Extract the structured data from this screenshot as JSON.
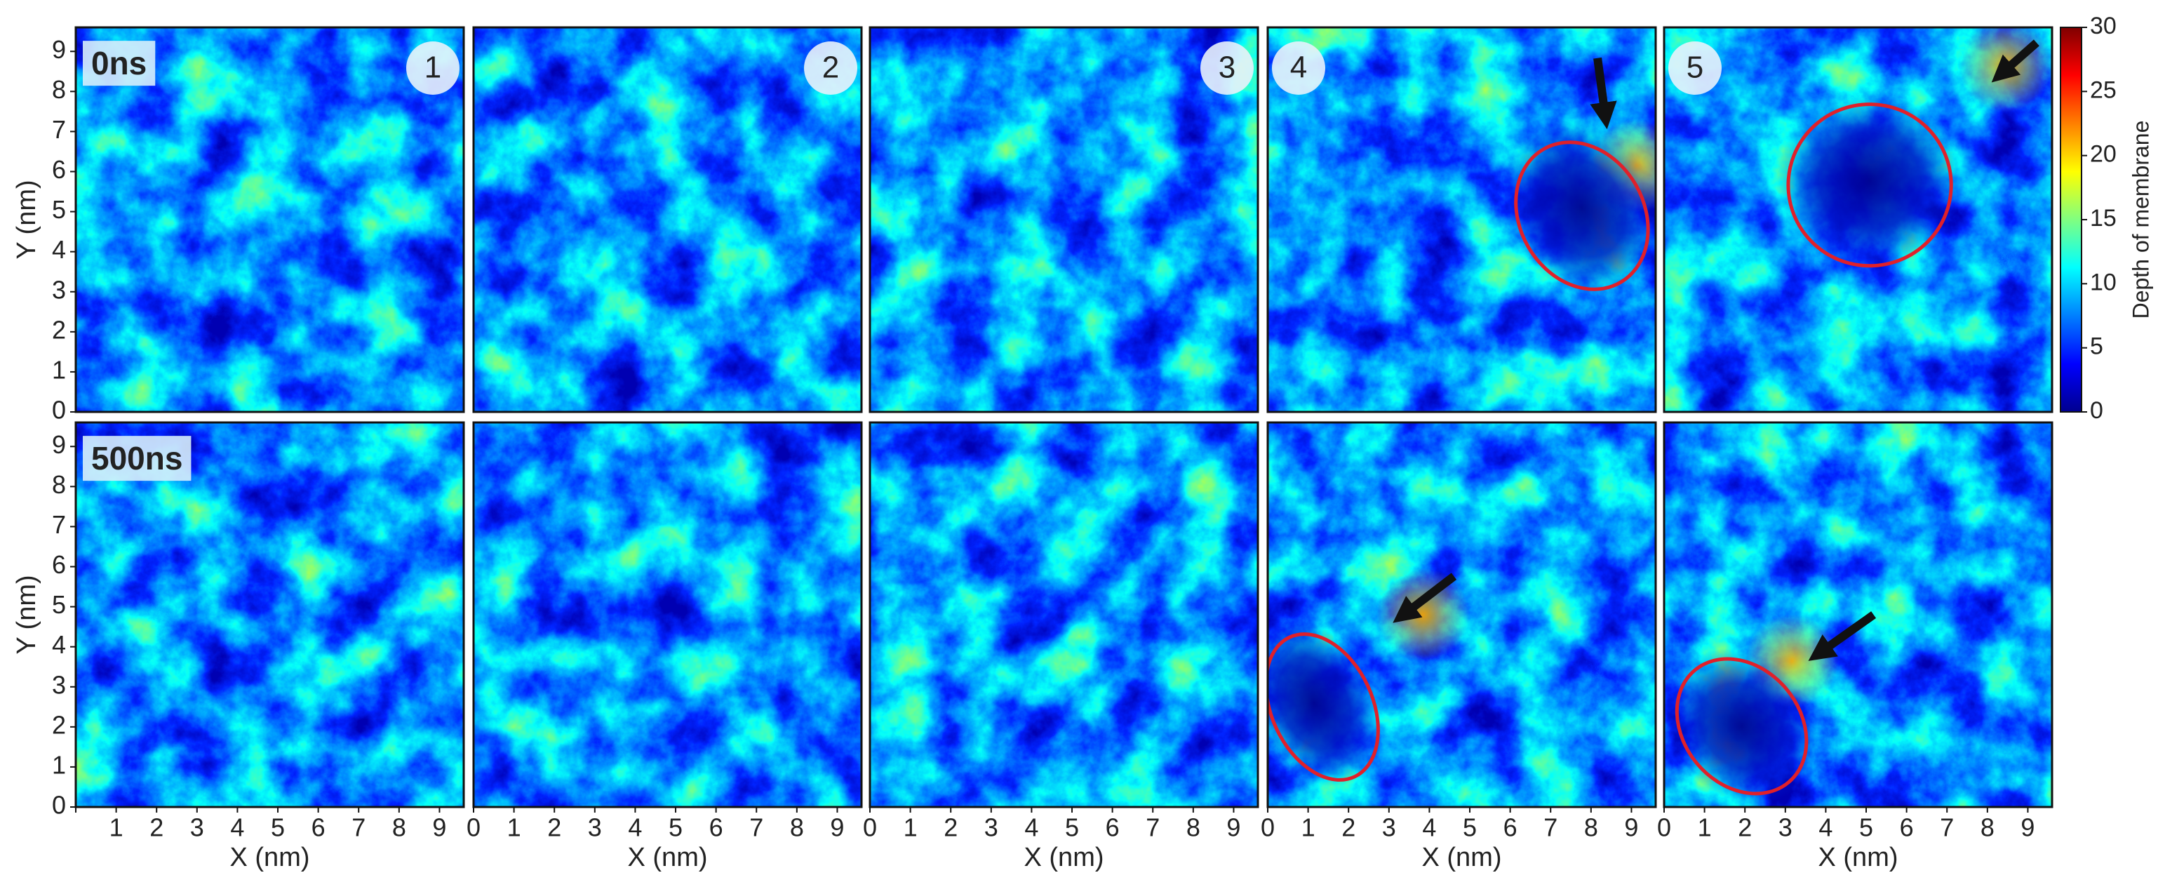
{
  "chart_data": {
    "type": "heatmap",
    "xlabel": "X (nm)",
    "ylabel": "Y (nm)",
    "xlim": [
      0,
      9.6
    ],
    "ylim": [
      0,
      9.6
    ],
    "xticks": [
      0,
      1,
      2,
      3,
      4,
      5,
      6,
      7,
      8,
      9
    ],
    "yticks": [
      0,
      1,
      2,
      3,
      4,
      5,
      6,
      7,
      8,
      9
    ],
    "row_labels": [
      "0ns",
      "500ns"
    ],
    "panel_labels": [
      "1",
      "2",
      "3",
      "4",
      "5"
    ],
    "colorbar": {
      "label": "Depth of membrane",
      "colormap": "jet",
      "clim": [
        0,
        30
      ],
      "ticks": [
        0,
        5,
        10,
        15,
        20,
        25,
        30
      ]
    }
  }
}
